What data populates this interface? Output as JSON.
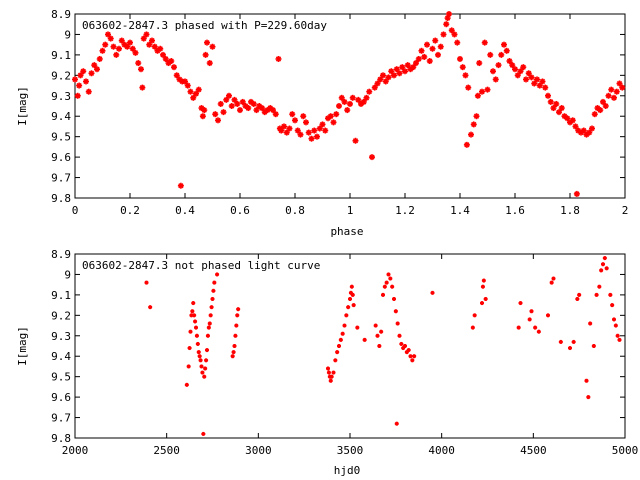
{
  "chart_data": [
    {
      "type": "scatter",
      "title": "063602-2847.3 phased with P=229.60day",
      "xlabel": "phase",
      "ylabel": "I[mag]",
      "xlim": [
        0,
        2
      ],
      "ylim": [
        8.9,
        9.8
      ],
      "y_inverted": true,
      "xticks": [
        0,
        0.2,
        0.4,
        0.6,
        0.8,
        1,
        1.2,
        1.4,
        1.6,
        1.8,
        2
      ],
      "xtick_labels": [
        "0",
        "0.2",
        "0.4",
        "0.6",
        "0.8",
        "1",
        "1.2",
        "1.4",
        "1.6",
        "1.8",
        "2"
      ],
      "yticks": [
        8.9,
        9,
        9.1,
        9.2,
        9.3,
        9.4,
        9.5,
        9.6,
        9.7,
        9.8
      ],
      "ytick_labels": [
        "8.9",
        "9",
        "9.1",
        "9.2",
        "9.3",
        "9.4",
        "9.5",
        "9.6",
        "9.7",
        "9.8"
      ],
      "marker_color": "#ff0000",
      "points": [
        [
          0.0,
          9.22
        ],
        [
          0.01,
          9.3
        ],
        [
          0.015,
          9.25
        ],
        [
          0.02,
          9.2
        ],
        [
          0.03,
          9.18
        ],
        [
          0.04,
          9.23
        ],
        [
          0.05,
          9.28
        ],
        [
          0.06,
          9.19
        ],
        [
          0.07,
          9.15
        ],
        [
          0.08,
          9.17
        ],
        [
          0.09,
          9.12
        ],
        [
          0.1,
          9.08
        ],
        [
          0.11,
          9.05
        ],
        [
          0.12,
          9.0
        ],
        [
          0.13,
          9.02
        ],
        [
          0.14,
          9.06
        ],
        [
          0.15,
          9.1
        ],
        [
          0.16,
          9.07
        ],
        [
          0.17,
          9.03
        ],
        [
          0.18,
          9.05
        ],
        [
          0.19,
          9.06
        ],
        [
          0.2,
          9.04
        ],
        [
          0.21,
          9.07
        ],
        [
          0.22,
          9.09
        ],
        [
          0.23,
          9.14
        ],
        [
          0.24,
          9.17
        ],
        [
          0.245,
          9.26
        ],
        [
          0.25,
          9.02
        ],
        [
          0.26,
          9.0
        ],
        [
          0.27,
          9.05
        ],
        [
          0.28,
          9.03
        ],
        [
          0.29,
          9.06
        ],
        [
          0.3,
          9.08
        ],
        [
          0.31,
          9.07
        ],
        [
          0.32,
          9.1
        ],
        [
          0.33,
          9.12
        ],
        [
          0.34,
          9.14
        ],
        [
          0.35,
          9.13
        ],
        [
          0.36,
          9.16
        ],
        [
          0.37,
          9.2
        ],
        [
          0.38,
          9.22
        ],
        [
          0.385,
          9.74
        ],
        [
          0.39,
          9.23
        ],
        [
          0.4,
          9.23
        ],
        [
          0.41,
          9.25
        ],
        [
          0.42,
          9.28
        ],
        [
          0.43,
          9.31
        ],
        [
          0.44,
          9.29
        ],
        [
          0.45,
          9.27
        ],
        [
          0.46,
          9.36
        ],
        [
          0.465,
          9.4
        ],
        [
          0.47,
          9.37
        ],
        [
          0.475,
          9.1
        ],
        [
          0.48,
          9.04
        ],
        [
          0.49,
          9.14
        ],
        [
          0.5,
          9.06
        ],
        [
          0.51,
          9.39
        ],
        [
          0.52,
          9.42
        ],
        [
          0.53,
          9.34
        ],
        [
          0.54,
          9.38
        ],
        [
          0.55,
          9.32
        ],
        [
          0.56,
          9.3
        ],
        [
          0.57,
          9.35
        ],
        [
          0.58,
          9.32
        ],
        [
          0.59,
          9.34
        ],
        [
          0.6,
          9.37
        ],
        [
          0.61,
          9.33
        ],
        [
          0.62,
          9.35
        ],
        [
          0.63,
          9.36
        ],
        [
          0.64,
          9.33
        ],
        [
          0.65,
          9.34
        ],
        [
          0.66,
          9.37
        ],
        [
          0.67,
          9.35
        ],
        [
          0.68,
          9.36
        ],
        [
          0.69,
          9.38
        ],
        [
          0.7,
          9.37
        ],
        [
          0.71,
          9.36
        ],
        [
          0.72,
          9.37
        ],
        [
          0.73,
          9.39
        ],
        [
          0.74,
          9.12
        ],
        [
          0.745,
          9.46
        ],
        [
          0.75,
          9.47
        ],
        [
          0.76,
          9.45
        ],
        [
          0.77,
          9.48
        ],
        [
          0.78,
          9.46
        ],
        [
          0.79,
          9.39
        ],
        [
          0.8,
          9.42
        ],
        [
          0.81,
          9.47
        ],
        [
          0.82,
          9.49
        ],
        [
          0.83,
          9.4
        ],
        [
          0.84,
          9.43
        ],
        [
          0.85,
          9.48
        ],
        [
          0.86,
          9.51
        ],
        [
          0.87,
          9.47
        ],
        [
          0.88,
          9.5
        ],
        [
          0.89,
          9.46
        ],
        [
          0.9,
          9.44
        ],
        [
          0.91,
          9.47
        ],
        [
          0.92,
          9.41
        ],
        [
          0.93,
          9.4
        ],
        [
          0.94,
          9.43
        ],
        [
          0.95,
          9.39
        ],
        [
          0.96,
          9.35
        ],
        [
          0.97,
          9.31
        ],
        [
          0.98,
          9.33
        ],
        [
          0.99,
          9.37
        ],
        [
          1.0,
          9.34
        ],
        [
          1.01,
          9.31
        ],
        [
          1.02,
          9.52
        ],
        [
          1.03,
          9.32
        ],
        [
          1.04,
          9.34
        ],
        [
          1.05,
          9.33
        ],
        [
          1.06,
          9.31
        ],
        [
          1.07,
          9.28
        ],
        [
          1.08,
          9.6
        ],
        [
          1.09,
          9.26
        ],
        [
          1.1,
          9.24
        ],
        [
          1.11,
          9.22
        ],
        [
          1.12,
          9.2
        ],
        [
          1.13,
          9.23
        ],
        [
          1.14,
          9.21
        ],
        [
          1.15,
          9.18
        ],
        [
          1.16,
          9.2
        ],
        [
          1.17,
          9.17
        ],
        [
          1.18,
          9.19
        ],
        [
          1.19,
          9.16
        ],
        [
          1.2,
          9.18
        ],
        [
          1.21,
          9.15
        ],
        [
          1.22,
          9.17
        ],
        [
          1.23,
          9.16
        ],
        [
          1.24,
          9.14
        ],
        [
          1.25,
          9.12
        ],
        [
          1.26,
          9.08
        ],
        [
          1.27,
          9.11
        ],
        [
          1.28,
          9.05
        ],
        [
          1.29,
          9.13
        ],
        [
          1.3,
          9.07
        ],
        [
          1.31,
          9.03
        ],
        [
          1.32,
          9.1
        ],
        [
          1.33,
          9.06
        ],
        [
          1.34,
          9.0
        ],
        [
          1.35,
          8.95
        ],
        [
          1.355,
          8.92
        ],
        [
          1.36,
          8.9
        ],
        [
          1.37,
          8.98
        ],
        [
          1.38,
          9.0
        ],
        [
          1.39,
          9.04
        ],
        [
          1.4,
          9.12
        ],
        [
          1.41,
          9.16
        ],
        [
          1.42,
          9.2
        ],
        [
          1.425,
          9.54
        ],
        [
          1.43,
          9.26
        ],
        [
          1.44,
          9.49
        ],
        [
          1.45,
          9.44
        ],
        [
          1.46,
          9.4
        ],
        [
          1.465,
          9.3
        ],
        [
          1.47,
          9.14
        ],
        [
          1.48,
          9.28
        ],
        [
          1.49,
          9.04
        ],
        [
          1.5,
          9.27
        ],
        [
          1.51,
          9.1
        ],
        [
          1.52,
          9.18
        ],
        [
          1.53,
          9.22
        ],
        [
          1.54,
          9.15
        ],
        [
          1.55,
          9.1
        ],
        [
          1.56,
          9.05
        ],
        [
          1.57,
          9.08
        ],
        [
          1.58,
          9.13
        ],
        [
          1.59,
          9.15
        ],
        [
          1.6,
          9.17
        ],
        [
          1.61,
          9.2
        ],
        [
          1.62,
          9.18
        ],
        [
          1.63,
          9.16
        ],
        [
          1.64,
          9.22
        ],
        [
          1.65,
          9.19
        ],
        [
          1.66,
          9.21
        ],
        [
          1.67,
          9.24
        ],
        [
          1.68,
          9.22
        ],
        [
          1.69,
          9.25
        ],
        [
          1.7,
          9.23
        ],
        [
          1.71,
          9.26
        ],
        [
          1.72,
          9.3
        ],
        [
          1.73,
          9.33
        ],
        [
          1.74,
          9.36
        ],
        [
          1.75,
          9.34
        ],
        [
          1.76,
          9.38
        ],
        [
          1.77,
          9.36
        ],
        [
          1.78,
          9.4
        ],
        [
          1.79,
          9.41
        ],
        [
          1.8,
          9.43
        ],
        [
          1.81,
          9.42
        ],
        [
          1.82,
          9.45
        ],
        [
          1.825,
          9.78
        ],
        [
          1.83,
          9.47
        ],
        [
          1.84,
          9.48
        ],
        [
          1.85,
          9.47
        ],
        [
          1.86,
          9.49
        ],
        [
          1.87,
          9.48
        ],
        [
          1.88,
          9.46
        ],
        [
          1.89,
          9.39
        ],
        [
          1.9,
          9.36
        ],
        [
          1.91,
          9.37
        ],
        [
          1.92,
          9.33
        ],
        [
          1.93,
          9.35
        ],
        [
          1.94,
          9.3
        ],
        [
          1.95,
          9.27
        ],
        [
          1.96,
          9.31
        ],
        [
          1.97,
          9.28
        ],
        [
          1.98,
          9.24
        ],
        [
          1.99,
          9.26
        ]
      ]
    },
    {
      "type": "scatter",
      "title": "063602-2847.3 not phased light curve",
      "xlabel": "hjd0",
      "ylabel": "I[mag]",
      "xlim": [
        2000,
        5000
      ],
      "ylim": [
        8.9,
        9.8
      ],
      "y_inverted": true,
      "xticks": [
        2000,
        2500,
        3000,
        3500,
        4000,
        4500,
        5000
      ],
      "xtick_labels": [
        "2000",
        "2500",
        "3000",
        "3500",
        "4000",
        "4500",
        "5000"
      ],
      "yticks": [
        8.9,
        9,
        9.1,
        9.2,
        9.3,
        9.4,
        9.5,
        9.6,
        9.7,
        9.8
      ],
      "ytick_labels": [
        "8.9",
        "9",
        "9.1",
        "9.2",
        "9.3",
        "9.4",
        "9.5",
        "9.6",
        "9.7",
        "9.8"
      ],
      "marker_color": "#ff0000",
      "points": [
        [
          2390,
          9.04
        ],
        [
          2410,
          9.16
        ],
        [
          2610,
          9.54
        ],
        [
          2620,
          9.45
        ],
        [
          2625,
          9.36
        ],
        [
          2630,
          9.28
        ],
        [
          2635,
          9.2
        ],
        [
          2640,
          9.18
        ],
        [
          2645,
          9.14
        ],
        [
          2650,
          9.2
        ],
        [
          2655,
          9.23
        ],
        [
          2660,
          9.26
        ],
        [
          2665,
          9.3
        ],
        [
          2670,
          9.34
        ],
        [
          2675,
          9.38
        ],
        [
          2680,
          9.4
        ],
        [
          2685,
          9.42
        ],
        [
          2690,
          9.45
        ],
        [
          2695,
          9.48
        ],
        [
          2700,
          9.78
        ],
        [
          2705,
          9.5
        ],
        [
          2710,
          9.46
        ],
        [
          2715,
          9.42
        ],
        [
          2720,
          9.37
        ],
        [
          2725,
          9.3
        ],
        [
          2730,
          9.26
        ],
        [
          2735,
          9.24
        ],
        [
          2740,
          9.2
        ],
        [
          2745,
          9.16
        ],
        [
          2750,
          9.12
        ],
        [
          2755,
          9.08
        ],
        [
          2760,
          9.04
        ],
        [
          2775,
          9.0
        ],
        [
          2860,
          9.4
        ],
        [
          2865,
          9.38
        ],
        [
          2870,
          9.35
        ],
        [
          2875,
          9.3
        ],
        [
          2880,
          9.25
        ],
        [
          2885,
          9.2
        ],
        [
          2890,
          9.17
        ],
        [
          3380,
          9.46
        ],
        [
          3385,
          9.48
        ],
        [
          3390,
          9.5
        ],
        [
          3395,
          9.52
        ],
        [
          3400,
          9.5
        ],
        [
          3410,
          9.48
        ],
        [
          3420,
          9.42
        ],
        [
          3430,
          9.38
        ],
        [
          3440,
          9.35
        ],
        [
          3450,
          9.32
        ],
        [
          3460,
          9.29
        ],
        [
          3470,
          9.25
        ],
        [
          3480,
          9.2
        ],
        [
          3490,
          9.16
        ],
        [
          3500,
          9.12
        ],
        [
          3505,
          9.09
        ],
        [
          3510,
          9.06
        ],
        [
          3515,
          9.1
        ],
        [
          3520,
          9.15
        ],
        [
          3540,
          9.26
        ],
        [
          3580,
          9.32
        ],
        [
          3640,
          9.25
        ],
        [
          3650,
          9.3
        ],
        [
          3660,
          9.35
        ],
        [
          3670,
          9.28
        ],
        [
          3680,
          9.1
        ],
        [
          3690,
          9.06
        ],
        [
          3700,
          9.04
        ],
        [
          3710,
          9.0
        ],
        [
          3720,
          9.02
        ],
        [
          3730,
          9.06
        ],
        [
          3740,
          9.12
        ],
        [
          3750,
          9.18
        ],
        [
          3755,
          9.73
        ],
        [
          3760,
          9.24
        ],
        [
          3770,
          9.3
        ],
        [
          3780,
          9.34
        ],
        [
          3790,
          9.36
        ],
        [
          3800,
          9.35
        ],
        [
          3810,
          9.38
        ],
        [
          3820,
          9.37
        ],
        [
          3830,
          9.4
        ],
        [
          3840,
          9.42
        ],
        [
          3850,
          9.4
        ],
        [
          3950,
          9.09
        ],
        [
          4170,
          9.26
        ],
        [
          4180,
          9.2
        ],
        [
          4220,
          9.14
        ],
        [
          4225,
          9.06
        ],
        [
          4230,
          9.03
        ],
        [
          4240,
          9.12
        ],
        [
          4420,
          9.26
        ],
        [
          4430,
          9.14
        ],
        [
          4480,
          9.22
        ],
        [
          4490,
          9.18
        ],
        [
          4510,
          9.26
        ],
        [
          4530,
          9.28
        ],
        [
          4580,
          9.2
        ],
        [
          4600,
          9.04
        ],
        [
          4610,
          9.02
        ],
        [
          4650,
          9.33
        ],
        [
          4700,
          9.36
        ],
        [
          4720,
          9.33
        ],
        [
          4740,
          9.12
        ],
        [
          4750,
          9.1
        ],
        [
          4790,
          9.52
        ],
        [
          4800,
          9.6
        ],
        [
          4810,
          9.24
        ],
        [
          4830,
          9.35
        ],
        [
          4845,
          9.1
        ],
        [
          4860,
          9.06
        ],
        [
          4870,
          8.98
        ],
        [
          4880,
          8.95
        ],
        [
          4890,
          8.92
        ],
        [
          4900,
          8.97
        ],
        [
          4920,
          9.1
        ],
        [
          4930,
          9.15
        ],
        [
          4940,
          9.22
        ],
        [
          4950,
          9.25
        ],
        [
          4960,
          9.3
        ],
        [
          4970,
          9.32
        ]
      ]
    }
  ]
}
